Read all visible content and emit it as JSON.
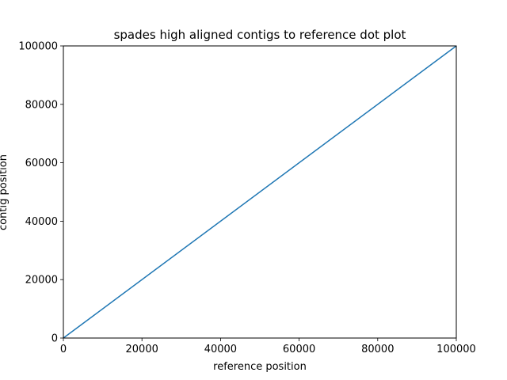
{
  "chart_data": {
    "type": "line",
    "title": "spades high aligned contigs to reference dot plot",
    "xlabel": "reference position",
    "ylabel": "contig position",
    "xlim": [
      0,
      100000
    ],
    "ylim": [
      0,
      100000
    ],
    "xticks": [
      0,
      20000,
      40000,
      60000,
      80000,
      100000
    ],
    "yticks": [
      0,
      20000,
      40000,
      60000,
      80000,
      100000
    ],
    "xtick_labels": [
      "0",
      "20000",
      "40000",
      "60000",
      "80000",
      "100000"
    ],
    "ytick_labels": [
      "0",
      "20000",
      "40000",
      "60000",
      "80000",
      "100000"
    ],
    "grid": false,
    "series": [
      {
        "x": [
          0,
          100000
        ],
        "y": [
          0,
          100000
        ],
        "color": "#1f77b4"
      }
    ]
  }
}
